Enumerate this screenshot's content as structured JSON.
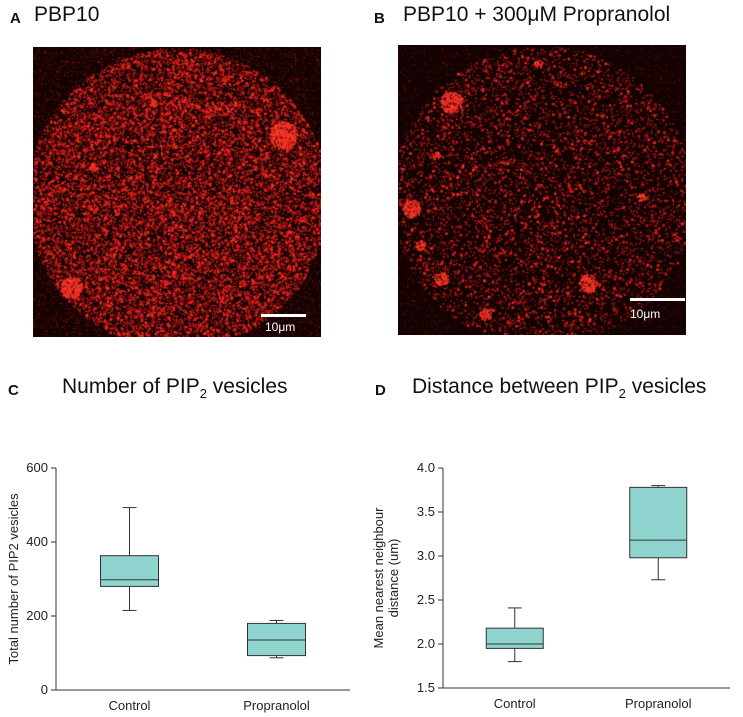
{
  "panels": {
    "A": {
      "letter": "A",
      "title": "PBP10",
      "scale_label": "10μm"
    },
    "B": {
      "letter": "B",
      "title": "PBP10 +  300μM Propranolol",
      "scale_label": "10μm"
    },
    "C": {
      "letter": "C",
      "title_main": "Number of PIP",
      "title_sub": "2",
      "title_end": " vesicles"
    },
    "D": {
      "letter": "D",
      "title_main": "Distance between PIP",
      "title_sub": "2",
      "title_end": " vesicles"
    }
  },
  "colors": {
    "box_fill": "#8fd4cf",
    "signal": "#ff2020",
    "background": "#140202"
  },
  "chart_data": [
    {
      "type": "box",
      "ylabel": "Total number of PIP2 vesicles",
      "ylim": [
        0,
        600
      ],
      "yticks": [
        0,
        200,
        400,
        600
      ],
      "categories": [
        "Control",
        "Propranolol"
      ],
      "boxes": [
        {
          "category": "Control",
          "whisker_low": 215,
          "q1": 280,
          "median": 298,
          "q3": 363,
          "whisker_high": 493
        },
        {
          "category": "Propranolol",
          "whisker_low": 87,
          "q1": 93,
          "median": 135,
          "q3": 180,
          "whisker_high": 188
        }
      ]
    },
    {
      "type": "box",
      "ylabel_lines": [
        "Mean nearest neighbour",
        "distance (um)"
      ],
      "ylim": [
        1.5,
        4.0
      ],
      "yticks": [
        "1.5",
        "2.0",
        "2.5",
        "3.0",
        "3.5",
        "4.0"
      ],
      "categories": [
        "Control",
        "Propranolol"
      ],
      "boxes": [
        {
          "category": "Control",
          "whisker_low": 1.8,
          "q1": 1.95,
          "median": 2.0,
          "q3": 2.18,
          "whisker_high": 2.41
        },
        {
          "category": "Propranolol",
          "whisker_low": 2.73,
          "q1": 2.98,
          "median": 3.18,
          "q3": 3.78,
          "whisker_high": 3.8
        }
      ]
    }
  ]
}
